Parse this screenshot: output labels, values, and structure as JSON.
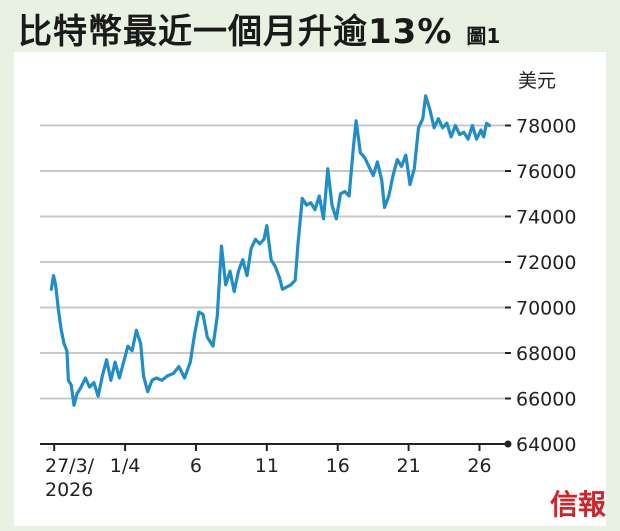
{
  "title": "比特幣最近一個月升逾13%",
  "figure_label": "圖1",
  "brand": "信報",
  "chart_data": {
    "type": "line",
    "title": "比特幣最近一個月升逾13%",
    "ylabel": "美元",
    "ylim": [
      64000,
      80000
    ],
    "y_ticks": [
      "64000",
      "66000",
      "68000",
      "70000",
      "72000",
      "74000",
      "76000",
      "78000"
    ],
    "x_ticks": [
      "27/3/\n2026",
      "1/4",
      "6",
      "11",
      "16",
      "21",
      "26"
    ],
    "x_tick_days": [
      0,
      5,
      10,
      15,
      20,
      25,
      30
    ],
    "grid": true,
    "line_color": "#1f8dc8",
    "series": [
      {
        "values": [
          [
            -0.2,
            70800
          ],
          [
            -0.05,
            71400
          ],
          [
            0.1,
            71000
          ],
          [
            0.3,
            69900
          ],
          [
            0.5,
            69000
          ],
          [
            0.7,
            68400
          ],
          [
            0.9,
            68100
          ],
          [
            1.0,
            66800
          ],
          [
            1.2,
            66600
          ],
          [
            1.4,
            65700
          ],
          [
            1.6,
            66200
          ],
          [
            1.9,
            66500
          ],
          [
            2.2,
            66900
          ],
          [
            2.5,
            66500
          ],
          [
            2.8,
            66700
          ],
          [
            3.1,
            66100
          ],
          [
            3.4,
            67000
          ],
          [
            3.7,
            67700
          ],
          [
            4.0,
            66800
          ],
          [
            4.3,
            67600
          ],
          [
            4.6,
            66900
          ],
          [
            4.9,
            67600
          ],
          [
            5.2,
            68300
          ],
          [
            5.5,
            68100
          ],
          [
            5.8,
            69000
          ],
          [
            6.1,
            68400
          ],
          [
            6.3,
            67000
          ],
          [
            6.6,
            66300
          ],
          [
            6.9,
            66800
          ],
          [
            7.2,
            66900
          ],
          [
            7.6,
            66800
          ],
          [
            8.0,
            67000
          ],
          [
            8.4,
            67100
          ],
          [
            8.8,
            67400
          ],
          [
            9.2,
            66900
          ],
          [
            9.6,
            67600
          ],
          [
            9.9,
            68800
          ],
          [
            10.2,
            69800
          ],
          [
            10.5,
            69700
          ],
          [
            10.8,
            68700
          ],
          [
            11.2,
            68300
          ],
          [
            11.5,
            69600
          ],
          [
            11.8,
            72700
          ],
          [
            12.1,
            71000
          ],
          [
            12.4,
            71600
          ],
          [
            12.7,
            70700
          ],
          [
            13.0,
            71600
          ],
          [
            13.3,
            72100
          ],
          [
            13.6,
            71400
          ],
          [
            13.9,
            72600
          ],
          [
            14.2,
            73000
          ],
          [
            14.5,
            72800
          ],
          [
            14.8,
            73000
          ],
          [
            15.0,
            73600
          ],
          [
            15.3,
            72100
          ],
          [
            15.6,
            71800
          ],
          [
            15.9,
            71300
          ],
          [
            16.1,
            70800
          ],
          [
            16.4,
            70900
          ],
          [
            16.7,
            71000
          ],
          [
            17.0,
            71200
          ],
          [
            17.2,
            72800
          ],
          [
            17.5,
            74800
          ],
          [
            17.8,
            74500
          ],
          [
            18.1,
            74600
          ],
          [
            18.4,
            74300
          ],
          [
            18.7,
            74900
          ],
          [
            19.0,
            73900
          ],
          [
            19.3,
            76100
          ],
          [
            19.6,
            74500
          ],
          [
            19.9,
            73900
          ],
          [
            20.2,
            75000
          ],
          [
            20.5,
            75100
          ],
          [
            20.8,
            74900
          ],
          [
            21.1,
            77000
          ],
          [
            21.3,
            78200
          ],
          [
            21.6,
            76800
          ],
          [
            21.9,
            76600
          ],
          [
            22.2,
            76200
          ],
          [
            22.5,
            75800
          ],
          [
            22.8,
            76400
          ],
          [
            23.1,
            75600
          ],
          [
            23.3,
            74400
          ],
          [
            23.6,
            74900
          ],
          [
            23.9,
            75800
          ],
          [
            24.2,
            76500
          ],
          [
            24.5,
            76200
          ],
          [
            24.8,
            76700
          ],
          [
            25.1,
            75400
          ],
          [
            25.4,
            76100
          ],
          [
            25.7,
            77900
          ],
          [
            26.0,
            78300
          ],
          [
            26.2,
            79300
          ],
          [
            26.5,
            78700
          ],
          [
            26.8,
            77900
          ],
          [
            27.1,
            78300
          ],
          [
            27.4,
            77900
          ],
          [
            27.7,
            78100
          ],
          [
            28.0,
            77500
          ],
          [
            28.3,
            78000
          ],
          [
            28.6,
            77600
          ],
          [
            28.9,
            77700
          ],
          [
            29.2,
            77400
          ],
          [
            29.5,
            78000
          ],
          [
            29.8,
            77400
          ],
          [
            30.1,
            77800
          ],
          [
            30.3,
            77500
          ],
          [
            30.5,
            78100
          ],
          [
            30.7,
            78000
          ]
        ]
      }
    ]
  }
}
